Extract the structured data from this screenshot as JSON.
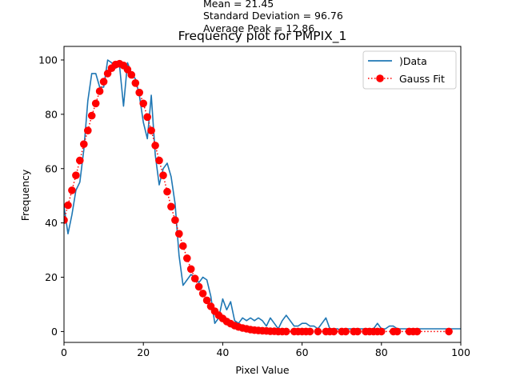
{
  "chart_data": {
    "type": "line",
    "title": "Frequency plot for PMPIX_1",
    "annotations": [
      "Mean = 21.45",
      "Standard Deviation = 96.76",
      "Average Peak = 12.86"
    ],
    "xlabel": "Pixel Value",
    "ylabel": "Frequency",
    "xlim": [
      0,
      100
    ],
    "ylim": [
      -4,
      105
    ],
    "x_ticks": [
      0,
      20,
      40,
      60,
      80,
      100
    ],
    "y_ticks": [
      0,
      20,
      40,
      60,
      80,
      100
    ],
    "grid": false,
    "legend_position": "top-right",
    "series": [
      {
        "name": ")Data",
        "style": "line",
        "color": "#1f77b4",
        "points": [
          [
            0,
            46
          ],
          [
            1,
            36
          ],
          [
            2,
            43
          ],
          [
            3,
            52
          ],
          [
            4,
            55
          ],
          [
            5,
            67
          ],
          [
            6,
            85
          ],
          [
            7,
            95
          ],
          [
            8,
            95
          ],
          [
            9,
            90
          ],
          [
            10,
            90
          ],
          [
            11,
            100
          ],
          [
            12,
            99
          ],
          [
            13,
            97
          ],
          [
            14,
            98
          ],
          [
            15,
            83
          ],
          [
            16,
            99
          ],
          [
            17,
            95
          ],
          [
            18,
            93
          ],
          [
            19,
            87
          ],
          [
            20,
            77
          ],
          [
            21,
            71
          ],
          [
            22,
            87
          ],
          [
            23,
            65
          ],
          [
            24,
            54
          ],
          [
            25,
            60
          ],
          [
            26,
            62
          ],
          [
            27,
            57
          ],
          [
            28,
            47
          ],
          [
            29,
            28
          ],
          [
            30,
            17
          ],
          [
            31,
            19
          ],
          [
            32,
            21
          ],
          [
            33,
            20
          ],
          [
            34,
            18
          ],
          [
            35,
            20
          ],
          [
            36,
            19
          ],
          [
            37,
            13
          ],
          [
            38,
            3
          ],
          [
            39,
            5
          ],
          [
            40,
            12
          ],
          [
            41,
            8
          ],
          [
            42,
            11
          ],
          [
            43,
            4
          ],
          [
            44,
            3
          ],
          [
            45,
            5
          ],
          [
            46,
            4
          ],
          [
            47,
            5
          ],
          [
            48,
            4
          ],
          [
            49,
            5
          ],
          [
            50,
            4
          ],
          [
            51,
            2
          ],
          [
            52,
            5
          ],
          [
            53,
            3
          ],
          [
            54,
            1
          ],
          [
            55,
            4
          ],
          [
            56,
            6
          ],
          [
            57,
            4
          ],
          [
            58,
            2
          ],
          [
            59,
            2
          ],
          [
            60,
            3
          ],
          [
            61,
            3
          ],
          [
            62,
            2
          ],
          [
            63,
            2
          ],
          [
            64,
            1
          ],
          [
            65,
            3
          ],
          [
            66,
            5
          ],
          [
            67,
            1
          ],
          [
            68,
            1
          ],
          [
            69,
            1
          ],
          [
            70,
            0
          ],
          [
            71,
            1
          ],
          [
            72,
            1
          ],
          [
            73,
            1
          ],
          [
            74,
            1
          ],
          [
            75,
            1
          ],
          [
            76,
            1
          ],
          [
            77,
            1
          ],
          [
            78,
            1
          ],
          [
            79,
            3
          ],
          [
            80,
            1
          ],
          [
            81,
            1
          ],
          [
            82,
            2
          ],
          [
            83,
            2
          ],
          [
            84,
            1
          ],
          [
            85,
            1
          ],
          [
            86,
            1
          ],
          [
            87,
            1
          ],
          [
            88,
            1
          ],
          [
            89,
            1
          ],
          [
            90,
            1
          ],
          [
            91,
            1
          ],
          [
            92,
            1
          ],
          [
            93,
            1
          ],
          [
            94,
            1
          ],
          [
            95,
            1
          ],
          [
            96,
            1
          ],
          [
            97,
            1
          ],
          [
            98,
            1
          ],
          [
            99,
            1
          ],
          [
            100,
            1
          ]
        ]
      },
      {
        "name": "Gauss Fit",
        "style": "dotted-markers",
        "color": "#ff0000",
        "points": [
          [
            0,
            41
          ],
          [
            1,
            46.5
          ],
          [
            2,
            52
          ],
          [
            3,
            57.5
          ],
          [
            4,
            63
          ],
          [
            5,
            69
          ],
          [
            6,
            74
          ],
          [
            7,
            79.5
          ],
          [
            8,
            84
          ],
          [
            9,
            88.5
          ],
          [
            10,
            92
          ],
          [
            11,
            95
          ],
          [
            12,
            97
          ],
          [
            13,
            98.3
          ],
          [
            14,
            98.6
          ],
          [
            15,
            98
          ],
          [
            16,
            96.5
          ],
          [
            17,
            94.5
          ],
          [
            18,
            91.5
          ],
          [
            19,
            88
          ],
          [
            20,
            84
          ],
          [
            21,
            79
          ],
          [
            22,
            74
          ],
          [
            23,
            68.5
          ],
          [
            24,
            63
          ],
          [
            25,
            57.5
          ],
          [
            26,
            51.5
          ],
          [
            27,
            46
          ],
          [
            28,
            41
          ],
          [
            29,
            36
          ],
          [
            30,
            31.5
          ],
          [
            31,
            27
          ],
          [
            32,
            23
          ],
          [
            33,
            19.5
          ],
          [
            34,
            16.5
          ],
          [
            35,
            14
          ],
          [
            36,
            11.5
          ],
          [
            37,
            9.3
          ],
          [
            38,
            7.5
          ],
          [
            39,
            6
          ],
          [
            40,
            4.8
          ],
          [
            41,
            3.7
          ],
          [
            42,
            2.9
          ],
          [
            43,
            2.2
          ],
          [
            44,
            1.7
          ],
          [
            45,
            1.3
          ],
          [
            46,
            1
          ],
          [
            47,
            0.7
          ],
          [
            48,
            0.5
          ],
          [
            49,
            0.4
          ],
          [
            50,
            0.3
          ],
          [
            51,
            0.2
          ],
          [
            52,
            0.1
          ],
          [
            53,
            0.1
          ],
          [
            54,
            0
          ],
          [
            55,
            0
          ],
          [
            56,
            0
          ],
          [
            58,
            0
          ],
          [
            59,
            0
          ],
          [
            60,
            0
          ],
          [
            61,
            0
          ],
          [
            62,
            0
          ],
          [
            64,
            0
          ],
          [
            66,
            0
          ],
          [
            67,
            0
          ],
          [
            68,
            0
          ],
          [
            70,
            0
          ],
          [
            71,
            0
          ],
          [
            73,
            0
          ],
          [
            74,
            0
          ],
          [
            76,
            0
          ],
          [
            77,
            0
          ],
          [
            78,
            0
          ],
          [
            79,
            0
          ],
          [
            80,
            0
          ],
          [
            83,
            0
          ],
          [
            84,
            0
          ],
          [
            87,
            0
          ],
          [
            88,
            0
          ],
          [
            89,
            0
          ],
          [
            97,
            0
          ]
        ]
      }
    ]
  }
}
